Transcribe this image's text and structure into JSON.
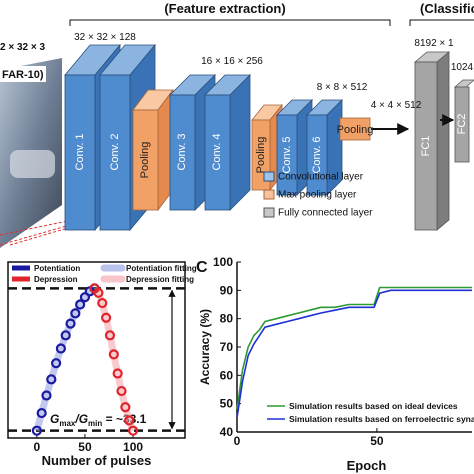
{
  "diagram": {
    "section_labels": [
      "(Feature extraction)",
      "(Classification"
    ],
    "input_size": "2 × 32 × 3",
    "dataset": "FAR-10)",
    "sizes": [
      "32 × 32 × 128",
      "16 × 16 × 256",
      "8 × 8 × 512",
      "4 × 4 × 512",
      "8192 × 1",
      "1024"
    ],
    "layers": [
      "Conv. 1",
      "Conv. 2",
      "Pooling",
      "Conv. 3",
      "Conv. 4",
      "Pooling",
      "Conv. 5",
      "Conv. 6",
      "Pooling",
      "FC1",
      "FC2"
    ],
    "legend": [
      "Convolutional layer",
      "Max pooling layer",
      "Fully connected layer"
    ]
  },
  "chart_data": [
    {
      "type": "line",
      "xlabel": "Number of pulses",
      "xlim": [
        -30,
        154
      ],
      "ylim": [
        -0.02,
        1.18
      ],
      "xticks": [
        0,
        50,
        100
      ],
      "hlines": [
        1.0,
        0.03
      ],
      "annotation_parts": [
        "G",
        "max",
        "/G",
        "min",
        " = ~33.1"
      ],
      "legend": "top",
      "series": [
        {
          "name": "Potentiation",
          "color": "#1a1aa0",
          "style": "dots",
          "x": [
            0,
            5,
            10,
            15,
            20,
            25,
            30,
            35,
            40,
            45,
            50,
            55,
            60
          ],
          "values": [
            0.03,
            0.15,
            0.27,
            0.38,
            0.49,
            0.59,
            0.68,
            0.76,
            0.83,
            0.89,
            0.94,
            0.98,
            1.0
          ]
        },
        {
          "name": "Potentiation fitting",
          "color": "#8f9be0",
          "style": "band",
          "x": [
            0,
            5,
            10,
            15,
            20,
            25,
            30,
            35,
            40,
            45,
            50,
            55,
            60
          ],
          "values": [
            0.03,
            0.15,
            0.27,
            0.38,
            0.49,
            0.59,
            0.68,
            0.76,
            0.83,
            0.89,
            0.94,
            0.98,
            1.0
          ]
        },
        {
          "name": "Depression",
          "color": "#e0242a",
          "style": "dots",
          "x": [
            60,
            64,
            68,
            72,
            76,
            80,
            84,
            88,
            92,
            96,
            100
          ],
          "values": [
            1.0,
            0.97,
            0.9,
            0.8,
            0.68,
            0.55,
            0.42,
            0.3,
            0.19,
            0.1,
            0.03
          ]
        },
        {
          "name": "Depression fitting",
          "color": "#f2a0a8",
          "style": "band",
          "x": [
            60,
            64,
            68,
            72,
            76,
            80,
            84,
            88,
            92,
            96,
            100
          ],
          "values": [
            1.0,
            0.97,
            0.9,
            0.8,
            0.68,
            0.55,
            0.42,
            0.3,
            0.19,
            0.1,
            0.03
          ]
        }
      ]
    },
    {
      "type": "line",
      "panel_label": "C",
      "xlabel": "Epoch",
      "ylabel": "Accuracy (%)",
      "xlim": [
        0,
        84
      ],
      "ylim": [
        40,
        100
      ],
      "xticks": [
        0,
        50
      ],
      "yticks": [
        40,
        50,
        60,
        70,
        80,
        90,
        100
      ],
      "legend": "lower right",
      "x": [
        0,
        2,
        4,
        6,
        8,
        10,
        14,
        18,
        22,
        26,
        30,
        35,
        40,
        45,
        49,
        51,
        55,
        60,
        70,
        80,
        84
      ],
      "series": [
        {
          "name": "Simulation results based on ideal devices",
          "color": "#2e9a34",
          "style": "line",
          "values": [
            48,
            62,
            70,
            74,
            76,
            79,
            80,
            81,
            82,
            83,
            84,
            84,
            85,
            85,
            85,
            91,
            91,
            91,
            91,
            91,
            91
          ]
        },
        {
          "name": "Simulation results based on ferroelectric synap",
          "color": "#1f2fd6",
          "style": "line",
          "values": [
            45,
            58,
            67,
            71,
            74,
            77,
            78,
            79,
            80,
            81,
            82,
            83,
            84,
            84,
            84,
            89,
            90,
            90,
            90,
            90,
            90
          ]
        }
      ]
    }
  ]
}
